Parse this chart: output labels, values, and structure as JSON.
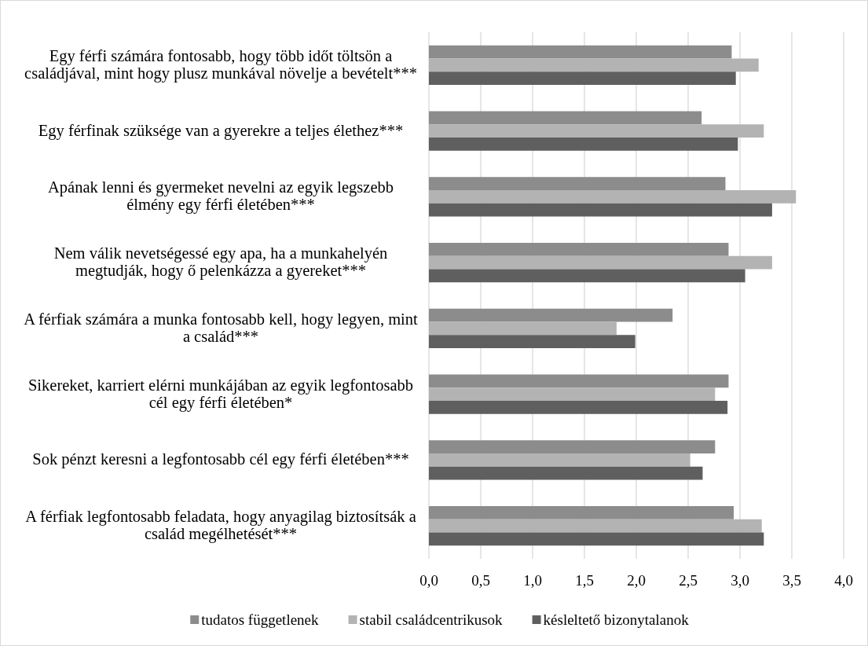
{
  "chart_data": {
    "type": "bar",
    "orientation": "horizontal",
    "categories": [
      "Egy férfi számára fontosabb, hogy több időt töltsön a családjával, mint hogy plusz munkával növelje a bevételt***",
      "Egy férfinak szüksége van a gyerekre a teljes élethez***",
      "Apának lenni és gyermeket nevelni az egyik legszebb élmény egy férfi életében***",
      "Nem válik nevetségessé egy apa, ha a munkahelyén megtudják, hogy ő pelenkázza a gyereket***",
      "A férfiak számára a munka fontosabb kell, hogy legyen, mint a család***",
      "Sikereket, karriert elérni munkájában az egyik legfontosabb cél egy férfi életében*",
      "Sok pénzt keresni a legfontosabb cél egy férfi életében***",
      "A férfiak legfontosabb feladata, hogy anyagilag biztosítsák a család megélhetését***"
    ],
    "series": [
      {
        "name": "tudatos függetlenek",
        "color": "#8c8c8c",
        "values": [
          2.92,
          2.63,
          2.86,
          2.89,
          2.35,
          2.89,
          2.76,
          2.94
        ]
      },
      {
        "name": "stabil családcentrikusok",
        "color": "#b3b3b3",
        "values": [
          3.18,
          3.23,
          3.54,
          3.31,
          1.81,
          2.76,
          2.52,
          3.21
        ]
      },
      {
        "name": "késleltető bizonytalanok",
        "color": "#5f5f5f",
        "values": [
          2.96,
          2.98,
          3.31,
          3.05,
          1.99,
          2.88,
          2.64,
          3.23
        ]
      }
    ],
    "xlim": [
      0,
      4
    ],
    "xticks": [
      {
        "value": 0,
        "label": "0,0"
      },
      {
        "value": 0.5,
        "label": "0,5"
      },
      {
        "value": 1,
        "label": "1,0"
      },
      {
        "value": 1.5,
        "label": "1,5"
      },
      {
        "value": 2,
        "label": "2,0"
      },
      {
        "value": 2.5,
        "label": "2,5"
      },
      {
        "value": 3,
        "label": "3,0"
      },
      {
        "value": 3.5,
        "label": "3,5"
      },
      {
        "value": 4,
        "label": "4,0"
      }
    ],
    "grid": "x",
    "legend": "bottom"
  }
}
